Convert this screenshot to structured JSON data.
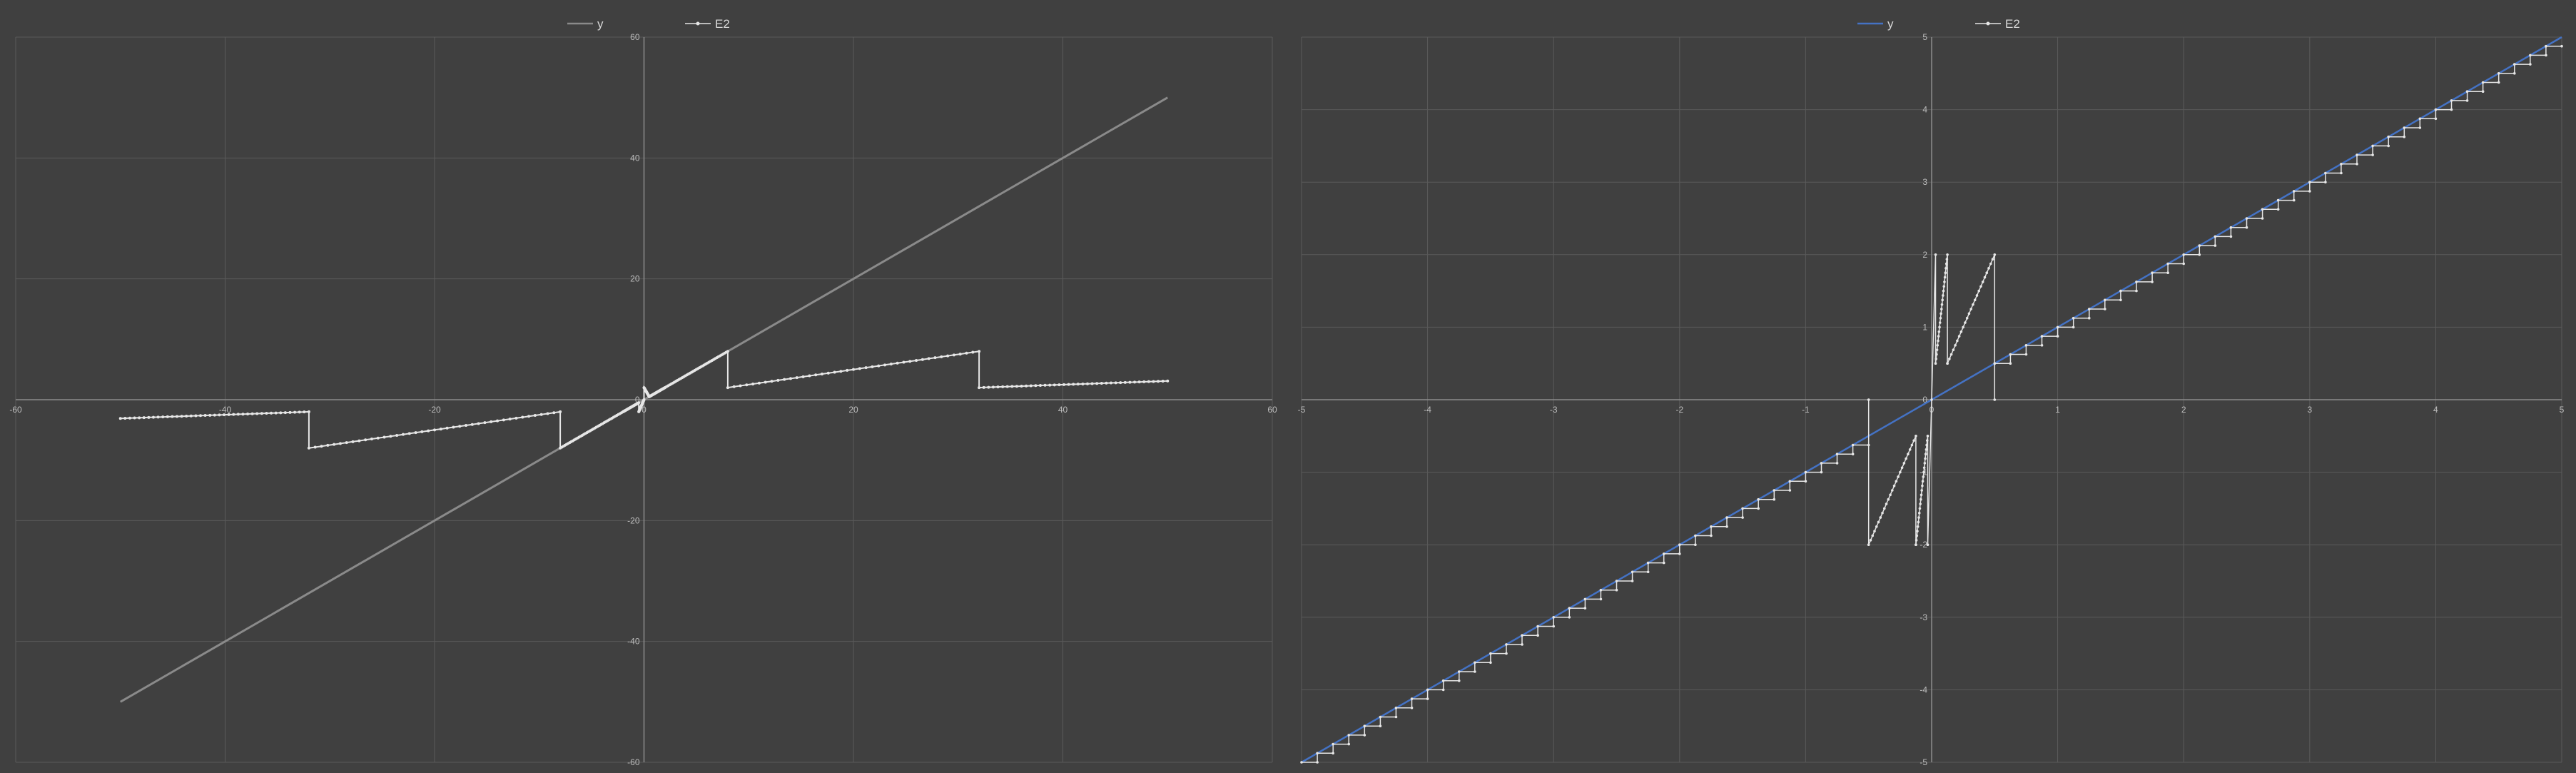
{
  "colors": {
    "background": "#404040",
    "grid": "#5a5a5a",
    "axis": "#8c8c8c",
    "tick_text": "#bdbdbd",
    "series_y_left": "#8a8a8a",
    "series_y_right": "#4472c4",
    "series_e2": "#e6e6e6"
  },
  "chart_data": [
    {
      "type": "scatter",
      "title": "",
      "xlabel": "",
      "ylabel": "",
      "xlim": [
        -60,
        60
      ],
      "ylim": [
        -60,
        60
      ],
      "xticks": [
        -60,
        -40,
        -20,
        0,
        20,
        40,
        60
      ],
      "yticks": [
        -60,
        -40,
        -20,
        0,
        20,
        40,
        60
      ],
      "xtick_labels": [
        "-60",
        "-40",
        "-20",
        "0",
        "20",
        "40",
        "60"
      ],
      "ytick_labels": [
        "-60",
        "-40",
        "-20",
        "0",
        "20",
        "40",
        "60"
      ],
      "grid": true,
      "legend": {
        "position": "top-center",
        "entries": [
          "y",
          "E2"
        ]
      },
      "series": [
        {
          "name": "y",
          "style": "line",
          "x": [
            -50,
            50
          ],
          "y": [
            -50,
            50
          ]
        },
        {
          "name": "E2",
          "style": "line-markers",
          "segments": [
            {
              "x": [
                -50,
                -32
              ],
              "y": [
                -3.1,
                -2.0
              ]
            },
            {
              "x": [
                -32,
                -8
              ],
              "y": [
                -8.0,
                -2.0
              ]
            },
            {
              "x": [
                -8,
                -2
              ],
              "y": [
                -8.0,
                -2.0
              ]
            },
            {
              "x": [
                -2,
                -0.5
              ],
              "y": [
                -2.0,
                -0.5
              ]
            },
            {
              "x": [
                -0.5,
                0
              ],
              "y": [
                -2.0,
                0
              ]
            },
            {
              "x": [
                0,
                0.5
              ],
              "y": [
                2.0,
                0.5
              ]
            },
            {
              "x": [
                0.5,
                2
              ],
              "y": [
                0.5,
                2.0
              ]
            },
            {
              "x": [
                2,
                8
              ],
              "y": [
                2.0,
                8.0
              ]
            },
            {
              "x": [
                8,
                32
              ],
              "y": [
                2.0,
                8.0
              ]
            },
            {
              "x": [
                32,
                50
              ],
              "y": [
                2.0,
                3.1
              ]
            }
          ]
        }
      ]
    },
    {
      "type": "scatter",
      "title": "",
      "xlabel": "",
      "ylabel": "",
      "xlim": [
        -5,
        5
      ],
      "ylim": [
        -5,
        5
      ],
      "xticks": [
        -5,
        -4,
        -3,
        -2,
        -1,
        0,
        1,
        2,
        3,
        4,
        5
      ],
      "yticks": [
        -5,
        -4,
        -3,
        -2,
        -1,
        0,
        1,
        2,
        3,
        4,
        5
      ],
      "xtick_labels": [
        "-5",
        "-4",
        "-3",
        "-2",
        "-1",
        "0",
        "1",
        "2",
        "3",
        "4",
        "5"
      ],
      "ytick_labels": [
        "-5",
        "-4",
        "-3",
        "-2",
        "-1",
        "0",
        "1",
        "2",
        "3",
        "4",
        "5"
      ],
      "grid": true,
      "legend": {
        "position": "top-center",
        "entries": [
          "y",
          "E2"
        ]
      },
      "series": [
        {
          "name": "y",
          "style": "line",
          "x": [
            -5,
            5
          ],
          "y": [
            -5,
            5
          ]
        },
        {
          "name": "E2",
          "style": "line-markers",
          "description_points": {
            "x": [
              -5,
              -0.5,
              -0.5,
              -0.125,
              -0.125,
              -0.03125,
              -0.03125,
              0,
              0.03125,
              0.03125,
              0.125,
              0.125,
              0.5,
              0.5,
              5
            ],
            "y": [
              -5,
              -0.5,
              -2.0,
              -0.5,
              -2.0,
              -0.5,
              -2.0,
              0,
              2.0,
              0.5,
              2.0,
              0.5,
              2.0,
              0.5,
              5
            ]
          },
          "staircase_step": 0.125
        }
      ]
    }
  ]
}
